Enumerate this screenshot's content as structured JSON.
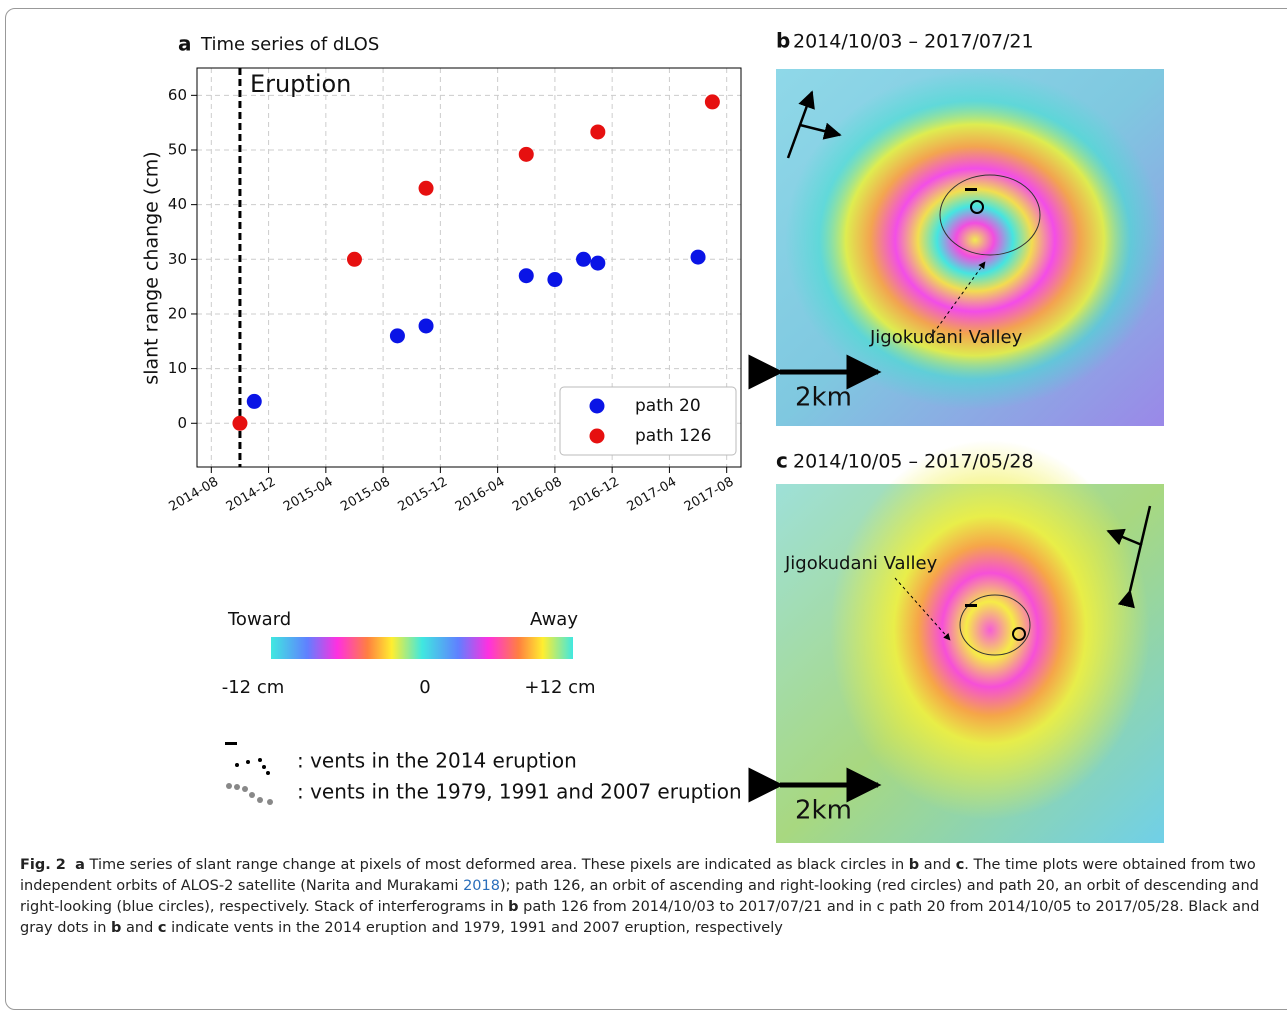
{
  "chart_data": {
    "type": "scatter",
    "panel_label": "a",
    "title": "Time series of dLOS",
    "ylabel": "slant range change (cm)",
    "series": [
      {
        "name": "path 20",
        "color": "#0a14e6",
        "x": [
          "2014-11",
          "2015-09",
          "2015-11",
          "2016-06",
          "2016-08",
          "2016-10",
          "2016-11",
          "2017-06"
        ],
        "values": [
          4,
          16,
          17.8,
          27,
          26.3,
          30,
          29.3,
          30.4
        ]
      },
      {
        "name": "path 126",
        "color": "#e61010",
        "x": [
          "2014-10",
          "2015-06",
          "2015-11",
          "2016-06",
          "2016-11",
          "2017-07"
        ],
        "values": [
          0,
          30,
          43,
          49.2,
          53.3,
          58.8
        ]
      }
    ],
    "xlim": [
      "2014-07",
      "2017-09"
    ],
    "xticks": [
      "2014-08",
      "2014-12",
      "2015-04",
      "2015-08",
      "2015-12",
      "2016-04",
      "2016-08",
      "2016-12",
      "2017-04",
      "2017-08"
    ],
    "ylim": [
      -8,
      65
    ],
    "yticks": [
      0,
      10,
      20,
      30,
      40,
      50,
      60
    ],
    "annotation": {
      "text": "Eruption",
      "x": "2014-10"
    },
    "grid": true,
    "legend": "lower right"
  },
  "panel_b": {
    "label": "b",
    "title": "2014/10/03 – 2017/07/21",
    "annotation": "Jigokudani Valley",
    "scale": "2km"
  },
  "panel_c": {
    "label": "c",
    "title": "2014/10/05 – 2017/05/28",
    "annotation": "Jigokudani Valley",
    "scale": "2km"
  },
  "colorbar": {
    "left_title": "Toward",
    "right_title": "Away",
    "ticks": [
      "-12 cm",
      "0",
      "+12 cm"
    ]
  },
  "vent_legend": [
    ": vents in the 2014 eruption",
    ": vents in the 1979, 1991 and 2007 eruption"
  ],
  "caption": [
    "Fig. 2",
    "a",
    "Time series of slant range change at pixels of most deformed area. These pixels are indicated as black circles in",
    "b",
    "and",
    "c",
    ". The time plots were obtained from two independent orbits of ALOS-2 satellite (Narita and Murakami",
    "2018",
    "); path 126, an orbit of ascending and right-looking (red circles) and path 20, an orbit of descending and right-looking (blue circles), respectively. Stack of interferograms in",
    "b",
    "path 126 from 2014/10/03 to 2017/07/21 and in c path 20 from 2014/10/05 to 2017/05/28. Black and gray dots in",
    "b",
    "and",
    "c",
    "indicate vents in the 2014 eruption and 1979, 1991 and 2007 eruption, respectively"
  ]
}
